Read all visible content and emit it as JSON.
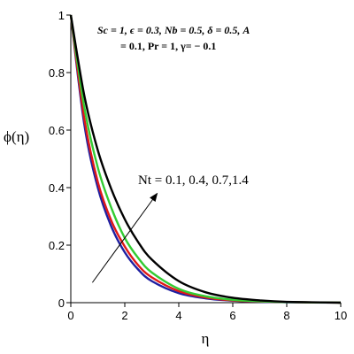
{
  "chart_data": {
    "type": "line",
    "xlabel": "η",
    "ylabel": "ϕ(η)",
    "xlim": [
      0,
      10
    ],
    "ylim": [
      0,
      1
    ],
    "xticks": [
      0,
      2,
      4,
      6,
      8,
      10
    ],
    "yticks": [
      0,
      0.2,
      0.4,
      0.6,
      0.8,
      1
    ],
    "grid": false,
    "annotations": {
      "params_line1": "Sc = 1, ϵ = 0.3,  Nb = 0.5, δ = 0.5, A",
      "params_line2": "= 0.1, Pr = 1, γ= − 0.1",
      "nt_label": "Nt = 0.1, 0.4, 0.7,1.4"
    },
    "series": [
      {
        "color": "#1f1fa0",
        "x": [
          0,
          0.5,
          1,
          1.5,
          2,
          2.5,
          3,
          4,
          5,
          6,
          7,
          8,
          10
        ],
        "y": [
          1,
          0.62,
          0.4,
          0.265,
          0.175,
          0.115,
          0.075,
          0.033,
          0.015,
          0.007,
          0.003,
          0.0015,
          0
        ]
      },
      {
        "color": "#e01818",
        "x": [
          0,
          0.5,
          1,
          1.5,
          2,
          2.5,
          3,
          4,
          5,
          6,
          7,
          8,
          10
        ],
        "y": [
          1,
          0.64,
          0.42,
          0.285,
          0.195,
          0.13,
          0.088,
          0.04,
          0.018,
          0.008,
          0.004,
          0.002,
          0
        ]
      },
      {
        "color": "#33cc33",
        "x": [
          0,
          0.5,
          1,
          1.5,
          2,
          2.5,
          3,
          4,
          5,
          6,
          7,
          8,
          10
        ],
        "y": [
          1,
          0.68,
          0.47,
          0.33,
          0.225,
          0.155,
          0.105,
          0.048,
          0.022,
          0.01,
          0.005,
          0.002,
          0
        ]
      },
      {
        "color": "#000000",
        "x": [
          0,
          0.5,
          1,
          1.5,
          2,
          2.5,
          3,
          4,
          5,
          6,
          7,
          8,
          10
        ],
        "y": [
          1,
          0.72,
          0.53,
          0.395,
          0.29,
          0.21,
          0.15,
          0.075,
          0.036,
          0.017,
          0.008,
          0.003,
          0
        ]
      }
    ],
    "arrow": {
      "from": [
        0.8,
        0.07
      ],
      "to": [
        3.2,
        0.38
      ]
    }
  }
}
